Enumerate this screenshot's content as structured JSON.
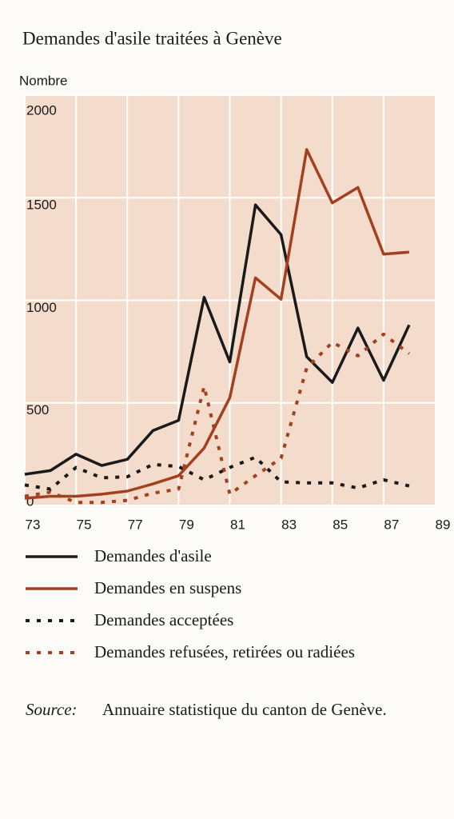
{
  "chart_data": {
    "type": "line",
    "title": "Demandes d'asile traitées à Genève",
    "y_label": "Nombre",
    "x": [
      73,
      74,
      75,
      76,
      77,
      78,
      79,
      80,
      81,
      82,
      83,
      84,
      85,
      86,
      87,
      88
    ],
    "xlim": [
      73,
      89
    ],
    "xticks": [
      73,
      75,
      77,
      79,
      81,
      83,
      85,
      87,
      89
    ],
    "ylim": [
      0,
      2000
    ],
    "yticks": [
      0,
      500,
      1000,
      1500,
      2000
    ],
    "grid": true,
    "series": [
      {
        "name": "Demandes d'asile",
        "color": "#1a1a1a",
        "style": "solid",
        "values": [
          152,
          170,
          250,
          195,
          225,
          365,
          415,
          1015,
          700,
          1465,
          1320,
          725,
          600,
          865,
          610,
          880
        ]
      },
      {
        "name": "Demandes en suspens",
        "color": "#a3401f",
        "style": "solid",
        "values": [
          35,
          45,
          45,
          55,
          70,
          105,
          145,
          280,
          525,
          1110,
          1005,
          1735,
          1475,
          1550,
          1225,
          1235
        ]
      },
      {
        "name": "Demandes acceptées",
        "color": "#1a1a1a",
        "style": "dotted",
        "values": [
          100,
          80,
          185,
          135,
          140,
          200,
          190,
          125,
          185,
          235,
          115,
          110,
          110,
          85,
          125,
          95
        ]
      },
      {
        "name": "Demandes refusées, retirées ou radiées",
        "color": "#a3401f",
        "style": "dotted",
        "values": [
          45,
          65,
          15,
          15,
          25,
          60,
          80,
          580,
          55,
          145,
          230,
          670,
          795,
          730,
          835,
          740
        ]
      }
    ],
    "source_label": "Source:",
    "source_text": "Annuaire statistique du canton de Genève."
  }
}
